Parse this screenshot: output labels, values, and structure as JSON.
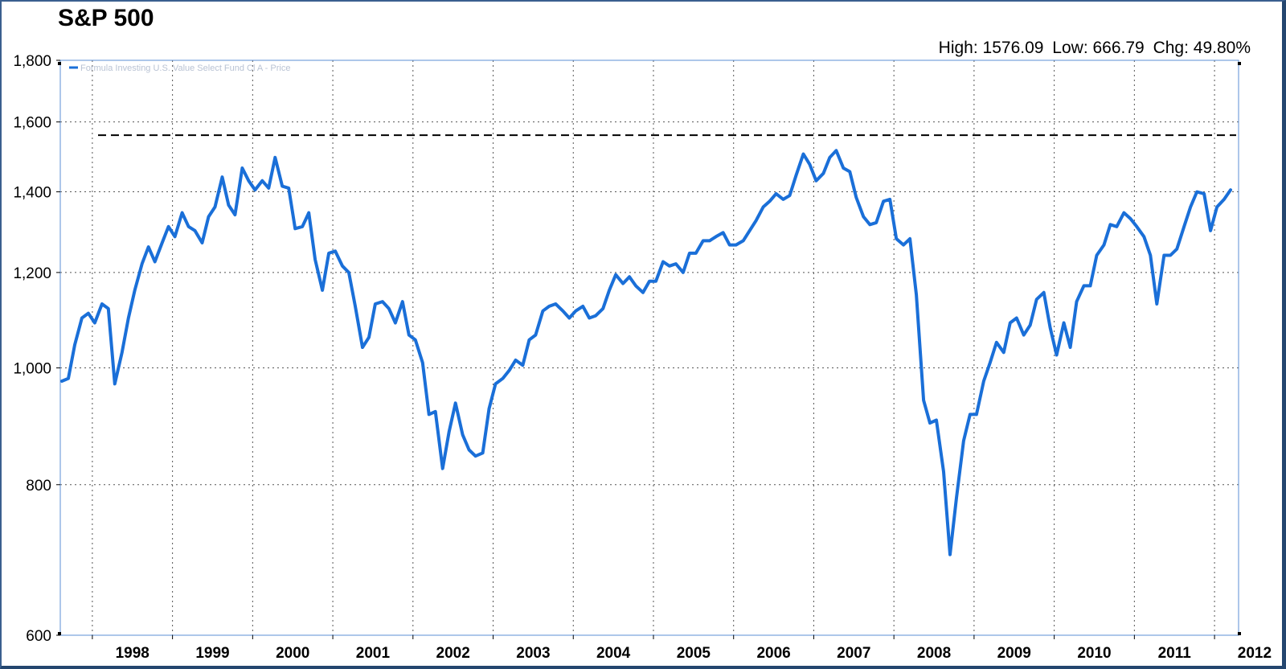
{
  "header": {
    "title": "S&P 500",
    "high": "High: 1576.09",
    "low": "Low: 666.79",
    "chg": "Chg: 49.80%"
  },
  "chart_data": {
    "type": "line",
    "title": "S&P 500",
    "yscale": "log",
    "ylim": [
      600,
      1800
    ],
    "yticks": [
      600,
      800,
      1000,
      1200,
      1400,
      1600,
      1800
    ],
    "ytick_labels": [
      "600",
      "800",
      "1,000",
      "1,200",
      "1,400",
      "1,600",
      "1,800"
    ],
    "xlim": [
      1997.6,
      2012.3
    ],
    "xtick_labels": [
      "1998",
      "1999",
      "2000",
      "2001",
      "2002",
      "2003",
      "2004",
      "2005",
      "2006",
      "2007",
      "2008",
      "2009",
      "2010",
      "2011",
      "2012"
    ],
    "grid": true,
    "legend": "top-left",
    "line_color": "#1a6fd8",
    "reference_line": {
      "value": 1560,
      "style": "dashed",
      "color": "#000000"
    },
    "series": [
      {
        "name": "Formula Investing U.S. Value Select Fund Cl A - Price",
        "x": [
          1997.62,
          1997.7,
          1997.78,
          1997.87,
          1997.95,
          1998.03,
          1998.12,
          1998.2,
          1998.28,
          1998.37,
          1998.45,
          1998.53,
          1998.62,
          1998.7,
          1998.78,
          1998.87,
          1998.95,
          1999.03,
          1999.12,
          1999.2,
          1999.28,
          1999.37,
          1999.45,
          1999.53,
          1999.62,
          1999.7,
          1999.78,
          1999.87,
          1999.95,
          2000.03,
          2000.12,
          2000.2,
          2000.28,
          2000.37,
          2000.45,
          2000.53,
          2000.62,
          2000.7,
          2000.78,
          2000.87,
          2000.95,
          2001.03,
          2001.12,
          2001.2,
          2001.28,
          2001.37,
          2001.45,
          2001.53,
          2001.62,
          2001.7,
          2001.78,
          2001.87,
          2001.95,
          2002.03,
          2002.12,
          2002.2,
          2002.28,
          2002.37,
          2002.45,
          2002.53,
          2002.62,
          2002.7,
          2002.78,
          2002.87,
          2002.95,
          2003.03,
          2003.12,
          2003.2,
          2003.28,
          2003.37,
          2003.45,
          2003.53,
          2003.62,
          2003.7,
          2003.78,
          2003.87,
          2003.95,
          2004.03,
          2004.12,
          2004.2,
          2004.28,
          2004.37,
          2004.45,
          2004.53,
          2004.62,
          2004.7,
          2004.78,
          2004.87,
          2004.95,
          2005.03,
          2005.12,
          2005.2,
          2005.28,
          2005.37,
          2005.45,
          2005.53,
          2005.62,
          2005.7,
          2005.78,
          2005.87,
          2005.95,
          2006.03,
          2006.12,
          2006.2,
          2006.28,
          2006.37,
          2006.45,
          2006.53,
          2006.62,
          2006.7,
          2006.78,
          2006.87,
          2006.95,
          2007.03,
          2007.12,
          2007.2,
          2007.28,
          2007.37,
          2007.45,
          2007.53,
          2007.62,
          2007.7,
          2007.78,
          2007.87,
          2007.95,
          2008.03,
          2008.12,
          2008.2,
          2008.28,
          2008.37,
          2008.45,
          2008.53,
          2008.62,
          2008.7,
          2008.78,
          2008.87,
          2008.95,
          2009.03,
          2009.12,
          2009.2,
          2009.28,
          2009.37,
          2009.45,
          2009.53,
          2009.62,
          2009.7,
          2009.78,
          2009.87,
          2009.95,
          2010.03,
          2010.12,
          2010.2,
          2010.28,
          2010.37,
          2010.45,
          2010.53,
          2010.62,
          2010.7,
          2010.78,
          2010.87,
          2010.95,
          2011.03,
          2011.12,
          2011.2,
          2011.28,
          2011.37,
          2011.45,
          2011.53,
          2011.62,
          2011.7,
          2011.78,
          2011.87,
          2011.95,
          2012.03,
          2012.12,
          2012.2
        ],
        "y": [
          975,
          980,
          1045,
          1100,
          1110,
          1090,
          1130,
          1120,
          970,
          1030,
          1100,
          1160,
          1220,
          1260,
          1225,
          1270,
          1310,
          1285,
          1345,
          1310,
          1300,
          1270,
          1335,
          1360,
          1440,
          1365,
          1340,
          1465,
          1430,
          1405,
          1430,
          1410,
          1495,
          1415,
          1410,
          1305,
          1310,
          1345,
          1230,
          1160,
          1245,
          1250,
          1215,
          1200,
          1125,
          1040,
          1060,
          1130,
          1135,
          1120,
          1090,
          1135,
          1065,
          1055,
          1010,
          915,
          920,
          825,
          885,
          935,
          880,
          855,
          845,
          850,
          925,
          970,
          980,
          995,
          1015,
          1005,
          1055,
          1065,
          1115,
          1125,
          1130,
          1115,
          1100,
          1115,
          1125,
          1100,
          1105,
          1120,
          1160,
          1195,
          1175,
          1190,
          1170,
          1155,
          1180,
          1180,
          1225,
          1215,
          1220,
          1200,
          1245,
          1245,
          1275,
          1275,
          1285,
          1295,
          1265,
          1265,
          1275,
          1300,
          1325,
          1360,
          1375,
          1395,
          1380,
          1390,
          1445,
          1505,
          1475,
          1430,
          1450,
          1495,
          1515,
          1465,
          1455,
          1385,
          1335,
          1315,
          1320,
          1375,
          1380,
          1280,
          1265,
          1280,
          1150,
          940,
          900,
          905,
          820,
          700,
          780,
          870,
          915,
          915,
          975,
          1010,
          1050,
          1030,
          1090,
          1100,
          1065,
          1085,
          1140,
          1155,
          1080,
          1025,
          1090,
          1040,
          1135,
          1170,
          1170,
          1240,
          1265,
          1315,
          1310,
          1345,
          1330,
          1310,
          1285,
          1240,
          1130,
          1240,
          1240,
          1255,
          1310,
          1360,
          1400,
          1395,
          1300,
          1360,
          1380,
          1405
        ]
      }
    ]
  }
}
